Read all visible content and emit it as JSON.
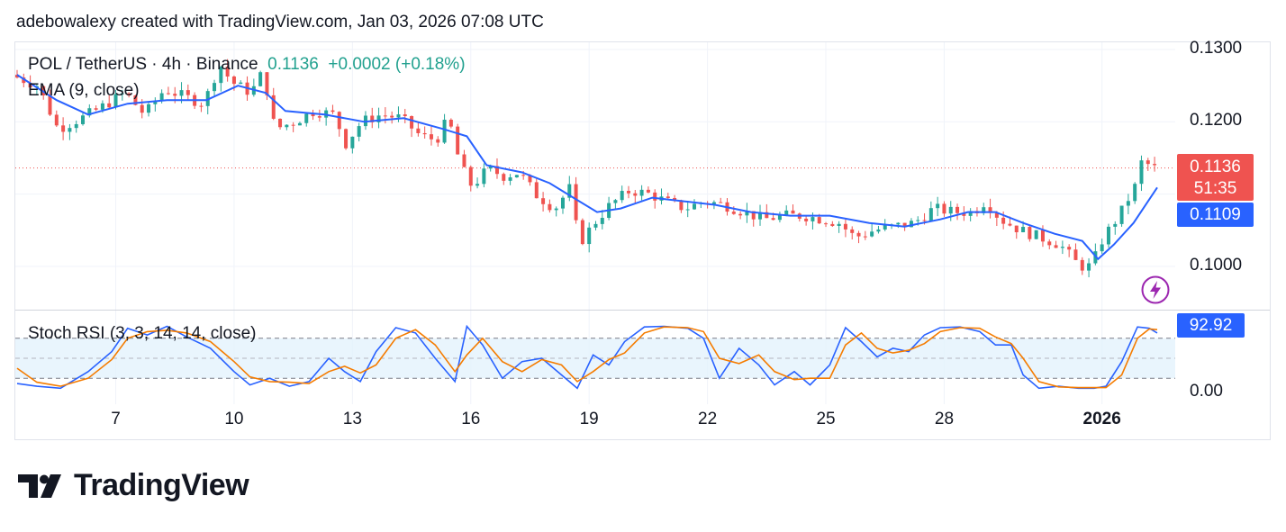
{
  "credit": "adebowalexy created with TradingView.com, Jan 03, 2026 07:08 UTC",
  "legend": {
    "symbol": "POL / TetherUS · 4h · Binance",
    "price": "0.1136",
    "change": "+0.0002 (+0.18%)",
    "ema": "EMA (9, close)",
    "stoch": "Stoch RSI (3, 3, 14, 14, close)"
  },
  "tags": {
    "last_price": "0.1136",
    "countdown": "51:35",
    "ema_value": "0.1109",
    "stoch_value": "92.92"
  },
  "logo_text": "TradingView",
  "colors": {
    "up": "#26a69a",
    "down": "#ef5350",
    "ema": "#2962ff",
    "stoch_k": "#2962ff",
    "stoch_d": "#f57c00",
    "stoch_band": "#e3f2fd",
    "last_price_tag": "#ef5350",
    "ema_tag": "#2962ff",
    "bolt": "#9c27b0"
  },
  "chart_data": {
    "type": "candlestick",
    "price_axis": {
      "min": 0.094,
      "max": 0.131,
      "ticks": [
        {
          "value": 0.13,
          "label": "0.1300"
        },
        {
          "value": 0.12,
          "label": "0.1200"
        },
        {
          "value": 0.1,
          "label": "0.1000"
        }
      ]
    },
    "stoch_axis": {
      "min": 0,
      "max": 100,
      "upper_band": 80,
      "middle": 50,
      "lower_band": 20,
      "ticks": [
        {
          "value": 0,
          "label": "0.00"
        }
      ]
    },
    "x_axis": {
      "start_day": 4.5,
      "end_day": 33.4,
      "ticks": [
        {
          "day": 7,
          "label": "7",
          "bold": false
        },
        {
          "day": 10,
          "label": "10",
          "bold": false
        },
        {
          "day": 13,
          "label": "13",
          "bold": false
        },
        {
          "day": 16,
          "label": "16",
          "bold": false
        },
        {
          "day": 19,
          "label": "19",
          "bold": false
        },
        {
          "day": 22,
          "label": "22",
          "bold": false
        },
        {
          "day": 25,
          "label": "25",
          "bold": false
        },
        {
          "day": 28,
          "label": "28",
          "bold": false
        },
        {
          "day": 32,
          "label": "2026",
          "bold": true
        }
      ]
    },
    "price_path": [
      [
        4.5,
        0.1265
      ],
      [
        5.2,
        0.125
      ],
      [
        5.7,
        0.119
      ],
      [
        6.3,
        0.1205
      ],
      [
        6.8,
        0.122
      ],
      [
        7.4,
        0.124
      ],
      [
        7.9,
        0.121
      ],
      [
        8.4,
        0.1245
      ],
      [
        8.9,
        0.1235
      ],
      [
        9.4,
        0.1225
      ],
      [
        9.8,
        0.128
      ],
      [
        10.1,
        0.1255
      ],
      [
        10.6,
        0.124
      ],
      [
        10.9,
        0.127
      ],
      [
        11.2,
        0.119
      ],
      [
        11.7,
        0.12
      ],
      [
        12.2,
        0.1215
      ],
      [
        12.7,
        0.121
      ],
      [
        13.0,
        0.117
      ],
      [
        13.4,
        0.12
      ],
      [
        13.9,
        0.121
      ],
      [
        14.4,
        0.1205
      ],
      [
        14.9,
        0.118
      ],
      [
        15.3,
        0.1175
      ],
      [
        15.6,
        0.1205
      ],
      [
        15.9,
        0.114
      ],
      [
        16.2,
        0.111
      ],
      [
        16.6,
        0.1135
      ],
      [
        17.0,
        0.1125
      ],
      [
        17.4,
        0.113
      ],
      [
        17.8,
        0.11
      ],
      [
        18.3,
        0.108
      ],
      [
        18.7,
        0.111
      ],
      [
        18.9,
        0.103
      ],
      [
        19.3,
        0.106
      ],
      [
        19.7,
        0.1085
      ],
      [
        20.2,
        0.1105
      ],
      [
        20.7,
        0.11
      ],
      [
        21.1,
        0.109
      ],
      [
        21.6,
        0.108
      ],
      [
        22.1,
        0.109
      ],
      [
        22.6,
        0.1085
      ],
      [
        23.1,
        0.1075
      ],
      [
        23.6,
        0.1065
      ],
      [
        24.1,
        0.107
      ],
      [
        24.6,
        0.107
      ],
      [
        25.1,
        0.1065
      ],
      [
        25.5,
        0.106
      ],
      [
        25.9,
        0.104
      ],
      [
        26.4,
        0.105
      ],
      [
        26.9,
        0.1055
      ],
      [
        27.4,
        0.106
      ],
      [
        27.9,
        0.108
      ],
      [
        28.4,
        0.1075
      ],
      [
        28.9,
        0.1075
      ],
      [
        29.2,
        0.109
      ],
      [
        29.6,
        0.1065
      ],
      [
        30.1,
        0.105
      ],
      [
        30.6,
        0.104
      ],
      [
        31.1,
        0.103
      ],
      [
        31.6,
        0.1
      ],
      [
        31.9,
        0.1
      ],
      [
        32.2,
        0.104
      ],
      [
        32.6,
        0.107
      ],
      [
        33.0,
        0.111
      ],
      [
        33.2,
        0.115
      ],
      [
        33.4,
        0.1136
      ]
    ],
    "ema_path": [
      [
        4.5,
        0.1265
      ],
      [
        5.5,
        0.123
      ],
      [
        6.3,
        0.121
      ],
      [
        7.3,
        0.1225
      ],
      [
        8.3,
        0.123
      ],
      [
        9.3,
        0.123
      ],
      [
        10.1,
        0.125
      ],
      [
        10.8,
        0.124
      ],
      [
        11.3,
        0.1215
      ],
      [
        12.3,
        0.121
      ],
      [
        13.3,
        0.12
      ],
      [
        14.3,
        0.1205
      ],
      [
        15.3,
        0.119
      ],
      [
        15.9,
        0.118
      ],
      [
        16.4,
        0.114
      ],
      [
        17.3,
        0.113
      ],
      [
        18.0,
        0.1115
      ],
      [
        18.6,
        0.1095
      ],
      [
        19.2,
        0.1075
      ],
      [
        19.8,
        0.108
      ],
      [
        20.6,
        0.1095
      ],
      [
        21.4,
        0.109
      ],
      [
        22.2,
        0.1085
      ],
      [
        23.1,
        0.1075
      ],
      [
        24.1,
        0.107
      ],
      [
        25.1,
        0.107
      ],
      [
        26.1,
        0.106
      ],
      [
        27.0,
        0.1055
      ],
      [
        27.9,
        0.1065
      ],
      [
        28.6,
        0.1075
      ],
      [
        29.3,
        0.1075
      ],
      [
        30.0,
        0.106
      ],
      [
        30.8,
        0.1045
      ],
      [
        31.5,
        0.1035
      ],
      [
        31.9,
        0.101
      ],
      [
        32.3,
        0.103
      ],
      [
        32.8,
        0.106
      ],
      [
        33.4,
        0.1109
      ]
    ],
    "stoch_k": [
      [
        4.5,
        12
      ],
      [
        5.0,
        8
      ],
      [
        5.6,
        5
      ],
      [
        6.3,
        30
      ],
      [
        6.9,
        60
      ],
      [
        7.3,
        95
      ],
      [
        7.8,
        85
      ],
      [
        8.3,
        98
      ],
      [
        8.8,
        82
      ],
      [
        9.4,
        65
      ],
      [
        10.0,
        30
      ],
      [
        10.4,
        10
      ],
      [
        10.9,
        20
      ],
      [
        11.4,
        8
      ],
      [
        11.9,
        15
      ],
      [
        12.4,
        50
      ],
      [
        12.8,
        30
      ],
      [
        13.2,
        15
      ],
      [
        13.6,
        60
      ],
      [
        14.1,
        96
      ],
      [
        14.6,
        88
      ],
      [
        15.1,
        50
      ],
      [
        15.6,
        15
      ],
      [
        15.9,
        98
      ],
      [
        16.3,
        70
      ],
      [
        16.8,
        20
      ],
      [
        17.3,
        45
      ],
      [
        17.8,
        50
      ],
      [
        18.3,
        25
      ],
      [
        18.7,
        5
      ],
      [
        19.1,
        55
      ],
      [
        19.5,
        40
      ],
      [
        19.9,
        75
      ],
      [
        20.4,
        97
      ],
      [
        20.9,
        98
      ],
      [
        21.5,
        95
      ],
      [
        21.9,
        80
      ],
      [
        22.3,
        20
      ],
      [
        22.8,
        65
      ],
      [
        23.3,
        40
      ],
      [
        23.7,
        10
      ],
      [
        24.2,
        30
      ],
      [
        24.6,
        10
      ],
      [
        25.1,
        40
      ],
      [
        25.5,
        96
      ],
      [
        25.9,
        75
      ],
      [
        26.3,
        52
      ],
      [
        26.7,
        65
      ],
      [
        27.1,
        60
      ],
      [
        27.5,
        85
      ],
      [
        27.9,
        96
      ],
      [
        28.4,
        97
      ],
      [
        28.9,
        90
      ],
      [
        29.3,
        70
      ],
      [
        29.7,
        70
      ],
      [
        30.0,
        25
      ],
      [
        30.4,
        5
      ],
      [
        30.9,
        8
      ],
      [
        31.4,
        5
      ],
      [
        31.8,
        5
      ],
      [
        32.1,
        8
      ],
      [
        32.5,
        45
      ],
      [
        32.9,
        97
      ],
      [
        33.2,
        95
      ],
      [
        33.4,
        88
      ]
    ],
    "stoch_d": [
      [
        4.5,
        35
      ],
      [
        5.0,
        14
      ],
      [
        5.6,
        8
      ],
      [
        6.3,
        20
      ],
      [
        6.9,
        48
      ],
      [
        7.3,
        80
      ],
      [
        7.8,
        90
      ],
      [
        8.3,
        92
      ],
      [
        8.8,
        88
      ],
      [
        9.4,
        75
      ],
      [
        10.0,
        45
      ],
      [
        10.4,
        22
      ],
      [
        10.9,
        15
      ],
      [
        11.4,
        14
      ],
      [
        11.9,
        12
      ],
      [
        12.4,
        30
      ],
      [
        12.8,
        38
      ],
      [
        13.2,
        28
      ],
      [
        13.6,
        40
      ],
      [
        14.1,
        80
      ],
      [
        14.6,
        93
      ],
      [
        15.1,
        70
      ],
      [
        15.6,
        30
      ],
      [
        15.9,
        55
      ],
      [
        16.3,
        80
      ],
      [
        16.8,
        45
      ],
      [
        17.3,
        30
      ],
      [
        17.8,
        48
      ],
      [
        18.3,
        40
      ],
      [
        18.7,
        15
      ],
      [
        19.1,
        30
      ],
      [
        19.5,
        48
      ],
      [
        19.9,
        58
      ],
      [
        20.4,
        88
      ],
      [
        20.9,
        97
      ],
      [
        21.5,
        96
      ],
      [
        21.9,
        90
      ],
      [
        22.3,
        50
      ],
      [
        22.8,
        42
      ],
      [
        23.3,
        55
      ],
      [
        23.7,
        30
      ],
      [
        24.2,
        18
      ],
      [
        24.6,
        20
      ],
      [
        25.1,
        20
      ],
      [
        25.5,
        70
      ],
      [
        25.9,
        88
      ],
      [
        26.3,
        65
      ],
      [
        26.7,
        58
      ],
      [
        27.1,
        62
      ],
      [
        27.5,
        72
      ],
      [
        27.9,
        90
      ],
      [
        28.4,
        96
      ],
      [
        28.9,
        95
      ],
      [
        29.3,
        82
      ],
      [
        29.7,
        72
      ],
      [
        30.0,
        50
      ],
      [
        30.4,
        15
      ],
      [
        30.9,
        7
      ],
      [
        31.4,
        6
      ],
      [
        31.8,
        6
      ],
      [
        32.1,
        6
      ],
      [
        32.5,
        25
      ],
      [
        32.9,
        80
      ],
      [
        33.2,
        94
      ],
      [
        33.4,
        93
      ]
    ]
  }
}
